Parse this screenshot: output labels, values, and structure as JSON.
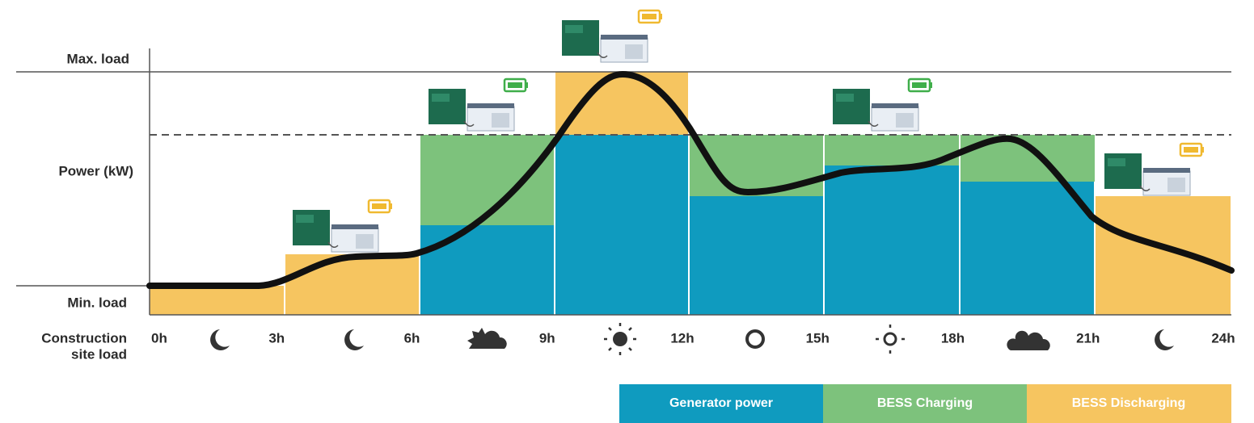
{
  "y_axis": {
    "max_label": "Max. load",
    "title": "Power (kW)",
    "min_label": "Min. load"
  },
  "x_axis": {
    "title_lines": [
      "Construction",
      "site load"
    ],
    "ticks": [
      "0h",
      "3h",
      "6h",
      "9h",
      "12h",
      "15h",
      "18h",
      "21h",
      "24h"
    ]
  },
  "legend": [
    "Generator power",
    "BESS Charging",
    "BESS Discharging"
  ]
}
